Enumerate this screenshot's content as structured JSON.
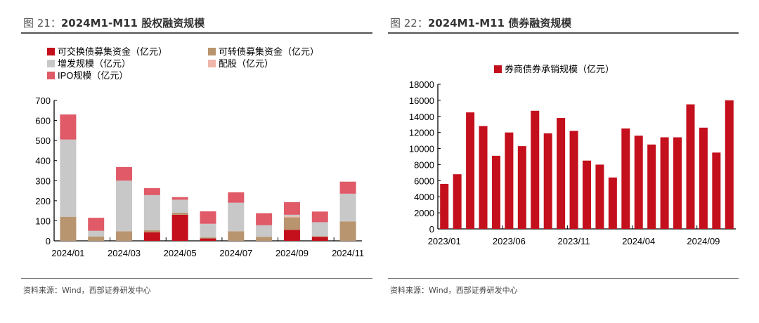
{
  "left": {
    "figure_no": "图 21：",
    "title": "2024M1-M11 股权融资规模",
    "source": "资料来源：Wind，西部证券研发中心"
  },
  "right": {
    "figure_no": "图 22：",
    "title": "2024M1-M11 债券融资规模",
    "source": "资料来源：Wind，西部证券研发中心"
  },
  "chart_data": [
    {
      "type": "bar",
      "stacked": true,
      "categories": [
        "2024/01",
        "2024/02",
        "2024/03",
        "2024/04",
        "2024/05",
        "2024/06",
        "2024/07",
        "2024/08",
        "2024/09",
        "2024/10",
        "2024/11"
      ],
      "tick_labels": [
        "2024/01",
        "2024/03",
        "2024/05",
        "2024/07",
        "2024/09",
        "2024/11"
      ],
      "ylim": [
        0,
        700
      ],
      "yticks": [
        0,
        100,
        200,
        300,
        400,
        500,
        600,
        700
      ],
      "legend_position": "top",
      "series": [
        {
          "name": "可交换债募集资金（亿元）",
          "color": "#c40f1c",
          "values": [
            0,
            0,
            0,
            43,
            130,
            12,
            0,
            0,
            55,
            20,
            0
          ]
        },
        {
          "name": "可转债募集资金（亿元）",
          "color": "#b8956e",
          "values": [
            120,
            22,
            48,
            10,
            10,
            5,
            48,
            20,
            62,
            3,
            97
          ]
        },
        {
          "name": "配股（亿元）",
          "color": "#efb6a9",
          "values": [
            0,
            0,
            0,
            0,
            0,
            0,
            0,
            0,
            5,
            0,
            0
          ]
        },
        {
          "name": "增发规模（亿元）",
          "color": "#c8c8c8",
          "values": [
            385,
            28,
            252,
            175,
            65,
            68,
            142,
            58,
            8,
            70,
            138
          ]
        },
        {
          "name": "IPO规模（亿元）",
          "color": "#e05a68",
          "values": [
            125,
            65,
            68,
            35,
            13,
            62,
            52,
            60,
            63,
            53,
            60
          ]
        }
      ],
      "legend_order": [
        0,
        1,
        3,
        2,
        4
      ],
      "grid": false
    },
    {
      "type": "bar",
      "categories": [
        "2023/01",
        "2023/02",
        "2023/03",
        "2023/04",
        "2023/05",
        "2023/06",
        "2023/07",
        "2023/08",
        "2023/09",
        "2023/10",
        "2023/11",
        "2023/12",
        "2024/01",
        "2024/02",
        "2024/03",
        "2024/04",
        "2024/05",
        "2024/06",
        "2024/07",
        "2024/08",
        "2024/09",
        "2024/10",
        "2024/11"
      ],
      "tick_labels": [
        "2023/01",
        "2023/06",
        "2023/11",
        "2024/04",
        "2024/09"
      ],
      "ylim": [
        0,
        18000
      ],
      "yticks": [
        0,
        2000,
        4000,
        6000,
        8000,
        10000,
        12000,
        14000,
        16000,
        18000
      ],
      "legend_position": "top",
      "series": [
        {
          "name": "券商债券承销规模（亿元）",
          "color": "#c40f1c",
          "values": [
            5600,
            6800,
            14500,
            12800,
            9100,
            12000,
            10300,
            14700,
            11900,
            13800,
            12200,
            8500,
            8000,
            6400,
            12500,
            11600,
            10500,
            11400,
            11400,
            15500,
            12600,
            9500,
            16000
          ]
        }
      ],
      "grid": false
    }
  ]
}
